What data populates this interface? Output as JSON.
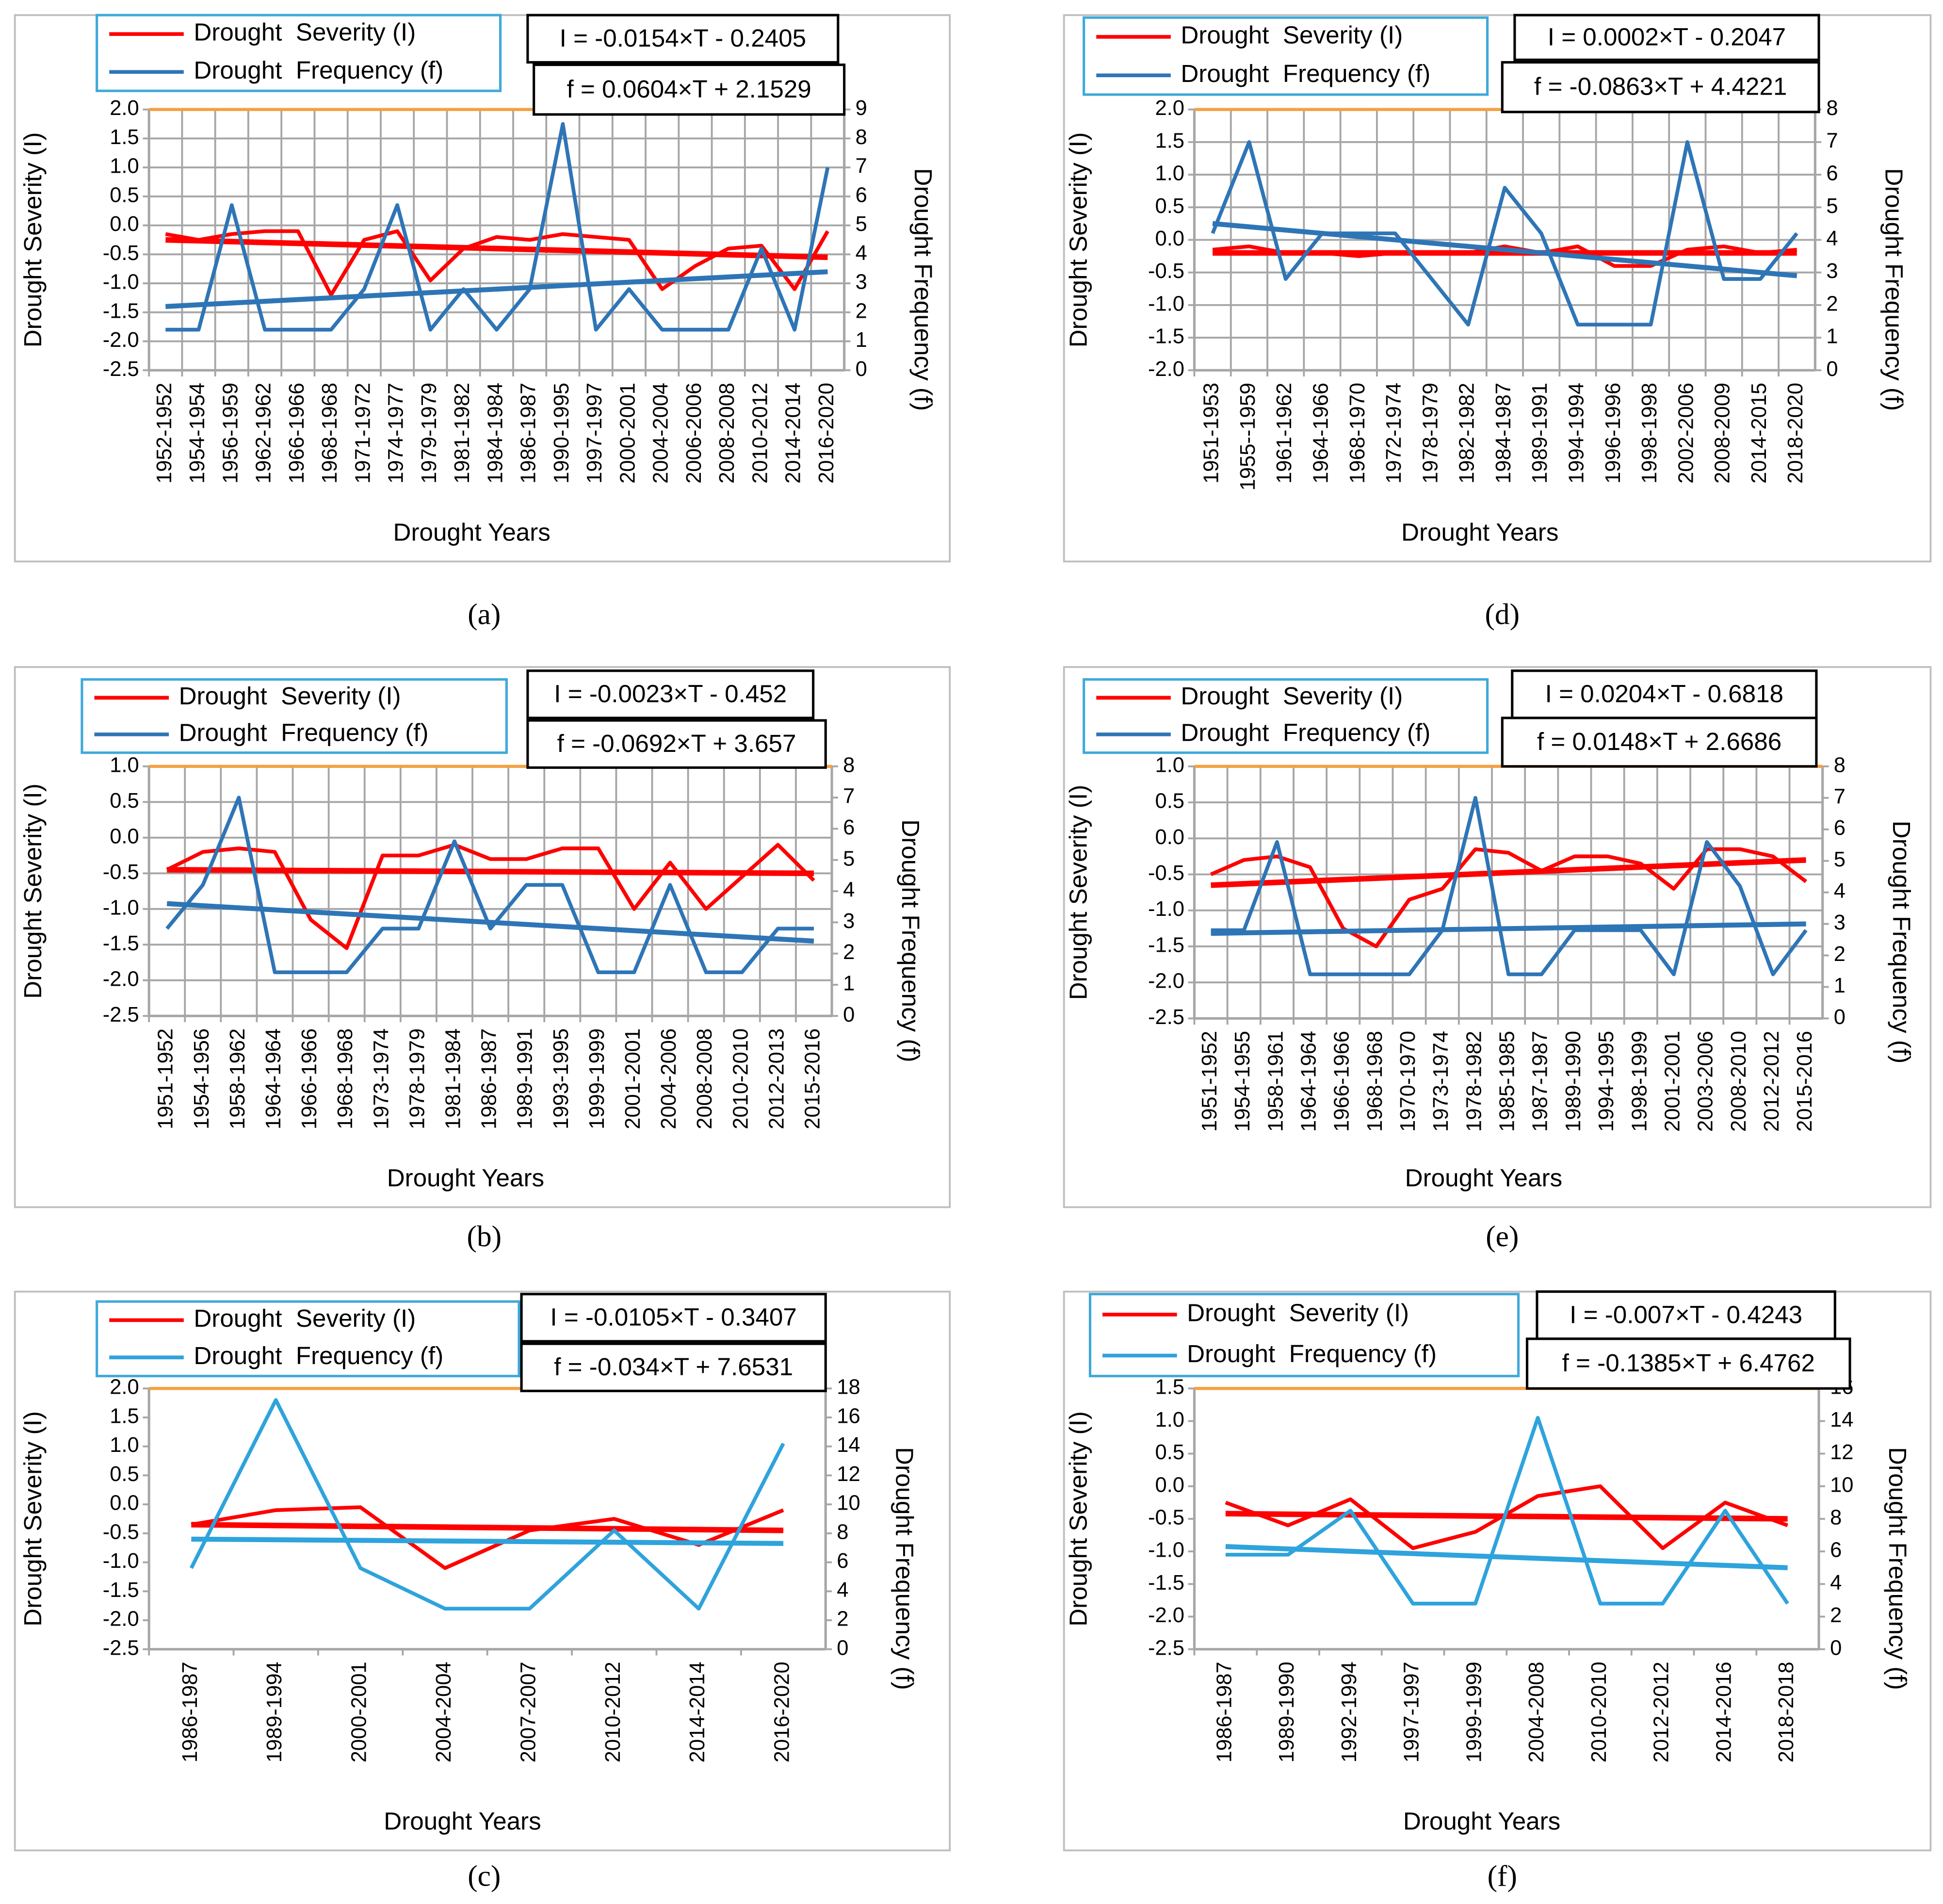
{
  "chart_data": [
    {
      "type": "line",
      "label": "(a)",
      "x_label": "Drought Years",
      "y_label": "Drought Severity (I)",
      "y2_label": "Drought Frequency (f)",
      "equations": [
        "I = -0.0154×T - 0.2405",
        "f = 0.0604×T + 2.1529"
      ],
      "grid": true,
      "categories": [
        "1952-1952",
        "1954-1954",
        "1956-1959",
        "1962-1962",
        "1966-1966",
        "1968-1968",
        "1971-1972",
        "1974-1977",
        "1979-1979",
        "1981-1982",
        "1984-1984",
        "1986-1987",
        "1990-1995",
        "1997-1997",
        "2000-2001",
        "2004-2004",
        "2006-2006",
        "2008-2008",
        "2010-2012",
        "2014-2014",
        "2016-2020"
      ],
      "series": [
        {
          "name": "Drought  Severity (I)",
          "color": "#ff0000",
          "axis": "y",
          "values": [
            -0.15,
            -0.25,
            -0.15,
            -0.1,
            -0.1,
            -1.2,
            -0.25,
            -0.1,
            -0.95,
            -0.4,
            -0.2,
            -0.25,
            -0.15,
            -0.2,
            -0.25,
            -1.1,
            -0.7,
            -0.4,
            -0.35,
            -1.1,
            -0.1
          ],
          "trend": [
            -0.25,
            -0.55
          ]
        },
        {
          "name": "Drought  Frequency (f)",
          "color": "#2e75b6",
          "axis": "y2",
          "values": [
            1.4,
            1.4,
            5.7,
            1.4,
            1.4,
            1.4,
            2.8,
            5.7,
            1.4,
            2.8,
            1.4,
            2.8,
            8.5,
            1.4,
            2.8,
            1.4,
            1.4,
            1.4,
            4.2,
            1.4,
            7
          ],
          "trend": [
            2.2,
            3.4
          ]
        }
      ],
      "ylim": [
        -2.5,
        2
      ],
      "yticks": [
        -2.5,
        {
          "value": -2,
          "label": "-2.0"
        },
        -1.5,
        {
          "value": -1,
          "label": "-1.0"
        },
        -0.5,
        {
          "value": 0,
          "label": "0.0"
        },
        0.5,
        {
          "value": 1,
          "label": "1.0"
        },
        1.5,
        {
          "value": 2,
          "label": "2.0"
        }
      ],
      "y2lim": [
        0,
        9
      ],
      "y2ticks": [
        0,
        1,
        2,
        3,
        4,
        5,
        6,
        7,
        8,
        9
      ]
    },
    {
      "type": "line",
      "label": "(b)",
      "x_label": "Drought Years",
      "y_label": "Drought Severity (I)",
      "y2_label": "Drought Frequency (f)",
      "equations": [
        "I = -0.0023×T - 0.452",
        "f = -0.0692×T + 3.657"
      ],
      "grid": true,
      "categories": [
        "1951-1952",
        "1954-1956",
        "1958-1962",
        "1964-1964",
        "1966-1966",
        "1968-1968",
        "1973-1974",
        "1978-1979",
        "1981-1984",
        "1986-1987",
        "1989-1991",
        "1993-1995",
        "1999-1999",
        "2001-2001",
        "2004-2006",
        "2008-2008",
        "2010-2010",
        "2012-2013",
        "2015-2016"
      ],
      "series": [
        {
          "name": "Drought  Severity (I)",
          "color": "#ff0000",
          "axis": "y",
          "values": [
            -0.45,
            -0.2,
            -0.15,
            -0.2,
            -1.15,
            -1.55,
            -0.25,
            -0.25,
            -0.1,
            -0.3,
            -0.3,
            -0.15,
            -0.15,
            -1.0,
            -0.35,
            -1.0,
            -0.55,
            -0.1,
            -0.6
          ],
          "trend": [
            -0.45,
            -0.5
          ]
        },
        {
          "name": "Drought  Frequency (f)",
          "color": "#2e75b6",
          "axis": "y2",
          "values": [
            2.8,
            4.2,
            7,
            1.4,
            1.4,
            1.4,
            2.8,
            2.8,
            5.6,
            2.8,
            4.2,
            4.2,
            1.4,
            1.4,
            4.2,
            1.4,
            1.4,
            2.8,
            2.8
          ],
          "trend": [
            3.6,
            2.4
          ]
        }
      ],
      "ylim": [
        -2.5,
        1
      ],
      "yticks": [
        -2.5,
        {
          "value": -2,
          "label": "-2.0"
        },
        -1.5,
        {
          "value": -1,
          "label": "-1.0"
        },
        -0.5,
        {
          "value": 0,
          "label": "0.0"
        },
        0.5,
        {
          "value": 1,
          "label": "1.0"
        }
      ],
      "y2lim": [
        0,
        8
      ],
      "y2ticks": [
        0,
        1,
        2,
        3,
        4,
        5,
        6,
        7,
        8
      ]
    },
    {
      "type": "line",
      "label": "(c)",
      "x_label": "Drought Years",
      "y_label": "Drought Severity (I)",
      "y2_label": "Drought Frequency (f)",
      "equations": [
        "I = -0.0105×T - 0.3407",
        "f = -0.034×T + 7.6531"
      ],
      "grid": false,
      "categories": [
        "1986-1987",
        "1989-1994",
        "2000-2001",
        "2004-2004",
        "2007-2007",
        "2010-2012",
        "2014-2014",
        "2016-2020"
      ],
      "series": [
        {
          "name": "Drought  Severity (I)",
          "color": "#ff0000",
          "axis": "y",
          "values": [
            -0.35,
            -0.1,
            -0.05,
            -1.1,
            -0.45,
            -0.25,
            -0.7,
            -0.1
          ],
          "trend": [
            -0.35,
            -0.45
          ]
        },
        {
          "name": "Drought  Frequency (f)",
          "color": "#2ea3dc",
          "axis": "y2",
          "values": [
            5.6,
            17.2,
            5.6,
            2.8,
            2.8,
            8.2,
            2.8,
            14.2
          ],
          "trend": [
            7.6,
            7.3
          ]
        }
      ],
      "ylim": [
        -2.5,
        2
      ],
      "yticks": [
        -2.5,
        {
          "value": -2,
          "label": "-2.0"
        },
        -1.5,
        {
          "value": -1,
          "label": "-1.0"
        },
        -0.5,
        {
          "value": 0,
          "label": "0.0"
        },
        0.5,
        {
          "value": 1,
          "label": "1.0"
        },
        1.5,
        {
          "value": 2,
          "label": "2.0"
        }
      ],
      "y2lim": [
        0,
        18
      ],
      "y2ticks": [
        0,
        2,
        4,
        6,
        8,
        10,
        12,
        14,
        16,
        18
      ]
    },
    {
      "type": "line",
      "label": "(d)",
      "x_label": "Drought Years",
      "y_label": "Drought Severity (I)",
      "y2_label": "Drought Frequency (f)",
      "equations": [
        "I = 0.0002×T - 0.2047",
        "f = -0.0863×T + 4.4221"
      ],
      "grid": true,
      "categories": [
        "1951-1953",
        "1955--1959",
        "1961-1962",
        "1964-1966",
        "1968-1970",
        "1972-1974",
        "1978-1979",
        "1982-1982",
        "1984-1987",
        "1989-1991",
        "1994-1994",
        "1996-1996",
        "1998-1998",
        "2002-2006",
        "2008-2009",
        "2014-2015",
        "2018-2020"
      ],
      "series": [
        {
          "name": "Drought  Severity (I)",
          "color": "#ff0000",
          "axis": "y",
          "values": [
            -0.15,
            -0.1,
            -0.2,
            -0.2,
            -0.25,
            -0.2,
            -0.2,
            -0.2,
            -0.1,
            -0.2,
            -0.1,
            -0.4,
            -0.4,
            -0.15,
            -0.1,
            -0.2,
            -0.15
          ],
          "trend": [
            -0.2,
            -0.2
          ]
        },
        {
          "name": "Drought  Frequency (f)",
          "color": "#2e75b6",
          "axis": "y2",
          "values": [
            4.2,
            7,
            2.8,
            4.2,
            4.2,
            4.2,
            2.8,
            1.4,
            5.6,
            4.2,
            1.4,
            1.4,
            1.4,
            7,
            2.8,
            2.8,
            4.2
          ],
          "trend": [
            4.5,
            2.9
          ]
        }
      ],
      "ylim": [
        -2,
        2
      ],
      "yticks": [
        {
          "value": -2,
          "label": "-2.0"
        },
        -1.5,
        {
          "value": -1,
          "label": "-1.0"
        },
        -0.5,
        {
          "value": 0,
          "label": "0.0"
        },
        0.5,
        {
          "value": 1,
          "label": "1.0"
        },
        1.5,
        {
          "value": 2,
          "label": "2.0"
        }
      ],
      "y2lim": [
        0,
        8
      ],
      "y2ticks": [
        0,
        1,
        2,
        3,
        4,
        5,
        6,
        7,
        8
      ]
    },
    {
      "type": "line",
      "label": "(e)",
      "x_label": "Drought Years",
      "y_label": "Drought Severity (I)",
      "y2_label": "Drought Frequency (f)",
      "equations": [
        "I = 0.0204×T - 0.6818",
        "f = 0.0148×T + 2.6686"
      ],
      "grid": true,
      "categories": [
        "1951-1952",
        "1954-1955",
        "1958-1961",
        "1964-1964",
        "1966-1966",
        "1968-1968",
        "1970-1970",
        "1973-1974",
        "1978-1982",
        "1985-1985",
        "1987-1987",
        "1989-1990",
        "1994-1995",
        "1998-1999",
        "2001-2001",
        "2003-2006",
        "2008-2010",
        "2012-2012",
        "2015-2016"
      ],
      "series": [
        {
          "name": "Drought  Severity (I)",
          "color": "#ff0000",
          "axis": "y",
          "values": [
            -0.5,
            -0.3,
            -0.25,
            -0.4,
            -1.25,
            -1.5,
            -0.85,
            -0.7,
            -0.15,
            -0.2,
            -0.45,
            -0.25,
            -0.25,
            -0.35,
            -0.7,
            -0.15,
            -0.15,
            -0.25,
            -0.6
          ],
          "trend": [
            -0.65,
            -0.3
          ]
        },
        {
          "name": "Drought  Frequency (f)",
          "color": "#2e75b6",
          "axis": "y2",
          "values": [
            2.8,
            2.8,
            5.6,
            1.4,
            1.4,
            1.4,
            1.4,
            2.8,
            7,
            1.4,
            1.4,
            2.8,
            2.8,
            2.8,
            1.4,
            5.6,
            4.2,
            1.4,
            2.8
          ],
          "trend": [
            2.7,
            3.0
          ]
        }
      ],
      "ylim": [
        -2.5,
        1
      ],
      "yticks": [
        -2.5,
        {
          "value": -2,
          "label": "-2.0"
        },
        -1.5,
        {
          "value": -1,
          "label": "-1.0"
        },
        -0.5,
        {
          "value": 0,
          "label": "0.0"
        },
        0.5,
        {
          "value": 1,
          "label": "1.0"
        }
      ],
      "y2lim": [
        0,
        8
      ],
      "y2ticks": [
        0,
        1,
        2,
        3,
        4,
        5,
        6,
        7,
        8
      ]
    },
    {
      "type": "line",
      "label": "(f)",
      "x_label": "Drought Years",
      "y_label": "Drought Severity (I)",
      "y2_label": "Drought Frequency (f)",
      "equations": [
        "I = -0.007×T - 0.4243",
        "f = -0.1385×T + 6.4762"
      ],
      "grid": false,
      "categories": [
        "1986-1987",
        "1989-1990",
        "1992-1994",
        "1997-1997",
        "1999-1999",
        "2004-2008",
        "2010-2010",
        "2012-2012",
        "2014-2016",
        "2018-2018"
      ],
      "series": [
        {
          "name": "Drought  Severity (I)",
          "color": "#ff0000",
          "axis": "y",
          "values": [
            -0.25,
            -0.6,
            -0.2,
            -0.95,
            -0.7,
            -0.15,
            0,
            -0.95,
            -0.25,
            -0.6
          ],
          "trend": [
            -0.42,
            -0.5
          ]
        },
        {
          "name": "Drought  Frequency (f)",
          "color": "#2ea3dc",
          "axis": "y2",
          "values": [
            5.8,
            5.8,
            8.5,
            2.8,
            2.8,
            14.2,
            2.8,
            2.8,
            8.5,
            2.8
          ],
          "trend": [
            6.3,
            5.0
          ]
        }
      ],
      "ylim": [
        -2.5,
        1.5
      ],
      "yticks": [
        -2.5,
        {
          "value": -2,
          "label": "-2.0"
        },
        -1.5,
        {
          "value": -1,
          "label": "-1.0"
        },
        -0.5,
        {
          "value": 0,
          "label": "0.0"
        },
        0.5,
        {
          "value": 1,
          "label": "1.0"
        },
        1.5
      ],
      "y2lim": [
        0,
        16
      ],
      "y2ticks": [
        0,
        2,
        4,
        6,
        8,
        10,
        12,
        14,
        16
      ]
    }
  ]
}
